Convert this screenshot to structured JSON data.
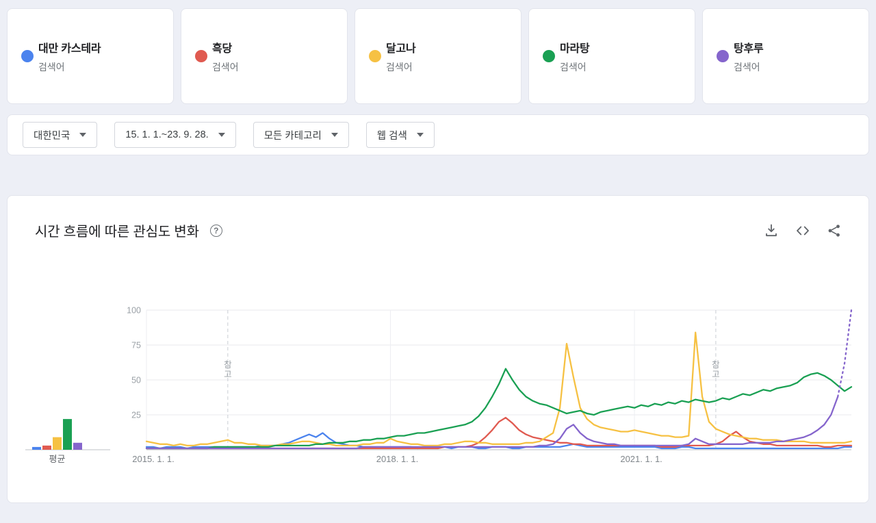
{
  "app": {
    "background": "#edeff6"
  },
  "terms": [
    {
      "label": "대만 카스테라",
      "kind": "검색어",
      "color": "#4b83ee"
    },
    {
      "label": "흑당",
      "kind": "검색어",
      "color": "#e05a50"
    },
    {
      "label": "달고나",
      "kind": "검색어",
      "color": "#f6c143"
    },
    {
      "label": "마라탕",
      "kind": "검색어",
      "color": "#1aa053"
    },
    {
      "label": "탕후루",
      "kind": "검색어",
      "color": "#8565cc"
    }
  ],
  "filters": [
    {
      "label": "대한민국"
    },
    {
      "label": "15. 1. 1.~23. 9. 28."
    },
    {
      "label": "모든 카테고리"
    },
    {
      "label": "웹 검색"
    }
  ],
  "chart_card": {
    "title": "시간 흐름에 따른 관심도 변화",
    "help_glyph": "?",
    "actions": [
      "download-icon",
      "embed-icon",
      "share-icon"
    ]
  },
  "chart_data": {
    "type": "line",
    "title": "시간 흐름에 따른 관심도 변화",
    "x_range": [
      "2015-01-01",
      "2023-09-28"
    ],
    "x_unit": "month",
    "x_ticks": [
      {
        "month_index": 0,
        "label": "2015. 1. 1."
      },
      {
        "month_index": 36,
        "label": "2018. 1. 1."
      },
      {
        "month_index": 72,
        "label": "2021. 1. 1."
      }
    ],
    "y_ticks": [
      25,
      50,
      75,
      100
    ],
    "ylim": [
      0,
      100
    ],
    "grid": true,
    "annotations": [
      {
        "month_index": 12,
        "label": "참고"
      },
      {
        "month_index": 84,
        "label": "참고"
      }
    ],
    "avg_label": "평균",
    "averages": [
      2,
      3,
      9,
      22,
      5
    ],
    "series": [
      {
        "name": "대만 카스테라",
        "color": "#4b83ee",
        "values": [
          2,
          2,
          1,
          2,
          2,
          2,
          1,
          2,
          2,
          2,
          2,
          2,
          2,
          2,
          2,
          2,
          2,
          3,
          3,
          3,
          4,
          5,
          7,
          9,
          11,
          9,
          12,
          8,
          5,
          4,
          3,
          3,
          2,
          2,
          2,
          2,
          2,
          2,
          2,
          2,
          1,
          2,
          2,
          2,
          2,
          1,
          2,
          2,
          2,
          1,
          1,
          2,
          2,
          2,
          1,
          1,
          2,
          2,
          2,
          2,
          2,
          2,
          3,
          4,
          3,
          2,
          2,
          2,
          2,
          2,
          2,
          2,
          2,
          2,
          2,
          2,
          1,
          1,
          1,
          2,
          2,
          1,
          1,
          1,
          1,
          1,
          1,
          1,
          1,
          1,
          1,
          1,
          1,
          1,
          1,
          1,
          1,
          1,
          1,
          1,
          1,
          1,
          1,
          2,
          2
        ]
      },
      {
        "name": "흑당",
        "color": "#e05a50",
        "values": [
          1,
          1,
          1,
          1,
          1,
          1,
          1,
          1,
          1,
          1,
          1,
          1,
          1,
          1,
          1,
          1,
          1,
          1,
          1,
          1,
          1,
          1,
          1,
          1,
          1,
          1,
          1,
          1,
          1,
          1,
          1,
          1,
          1,
          1,
          1,
          1,
          1,
          1,
          1,
          1,
          1,
          1,
          1,
          1,
          2,
          2,
          2,
          2,
          3,
          5,
          9,
          14,
          20,
          23,
          19,
          14,
          11,
          9,
          8,
          7,
          6,
          5,
          5,
          4,
          4,
          3,
          3,
          3,
          3,
          3,
          3,
          3,
          3,
          3,
          3,
          3,
          2,
          2,
          2,
          3,
          3,
          3,
          3,
          3,
          4,
          6,
          10,
          13,
          9,
          6,
          5,
          4,
          4,
          3,
          3,
          3,
          3,
          3,
          3,
          3,
          2,
          2,
          3,
          3,
          3
        ]
      },
      {
        "name": "달고나",
        "color": "#f6c143",
        "values": [
          6,
          5,
          4,
          4,
          3,
          4,
          3,
          3,
          4,
          4,
          5,
          6,
          7,
          5,
          5,
          4,
          4,
          3,
          3,
          3,
          4,
          4,
          5,
          6,
          6,
          5,
          4,
          4,
          3,
          3,
          3,
          3,
          4,
          4,
          5,
          5,
          8,
          6,
          5,
          4,
          4,
          3,
          3,
          3,
          4,
          4,
          5,
          6,
          6,
          5,
          5,
          4,
          4,
          4,
          4,
          4,
          5,
          5,
          6,
          9,
          12,
          30,
          76,
          52,
          30,
          22,
          18,
          16,
          15,
          14,
          13,
          13,
          14,
          13,
          12,
          11,
          10,
          10,
          9,
          9,
          10,
          84,
          38,
          20,
          15,
          13,
          11,
          10,
          9,
          8,
          8,
          7,
          7,
          7,
          6,
          6,
          6,
          6,
          5,
          5,
          5,
          5,
          5,
          5,
          6
        ]
      },
      {
        "name": "마라탕",
        "color": "#1aa053",
        "values": [
          1,
          1,
          1,
          1,
          1,
          1,
          1,
          1,
          1,
          1,
          2,
          2,
          2,
          2,
          2,
          2,
          2,
          2,
          2,
          3,
          3,
          3,
          3,
          3,
          3,
          4,
          4,
          5,
          5,
          5,
          6,
          6,
          7,
          7,
          8,
          8,
          9,
          10,
          10,
          11,
          12,
          12,
          13,
          14,
          15,
          16,
          17,
          18,
          20,
          24,
          30,
          38,
          47,
          58,
          50,
          43,
          38,
          35,
          33,
          32,
          30,
          28,
          26,
          27,
          28,
          26,
          25,
          27,
          28,
          29,
          30,
          31,
          30,
          32,
          31,
          33,
          32,
          34,
          33,
          35,
          34,
          36,
          35,
          34,
          35,
          37,
          36,
          38,
          40,
          39,
          41,
          43,
          42,
          44,
          45,
          46,
          48,
          52,
          54,
          55,
          53,
          50,
          46,
          42,
          45
        ]
      },
      {
        "name": "탕후루",
        "color": "#8565cc",
        "dashed_tail_points": 2,
        "values": [
          1,
          1,
          1,
          1,
          1,
          1,
          1,
          1,
          1,
          1,
          1,
          1,
          1,
          1,
          1,
          1,
          1,
          1,
          1,
          1,
          1,
          1,
          1,
          1,
          1,
          1,
          1,
          1,
          1,
          1,
          1,
          1,
          2,
          2,
          2,
          2,
          2,
          2,
          2,
          2,
          2,
          2,
          2,
          2,
          2,
          2,
          2,
          2,
          2,
          2,
          2,
          2,
          2,
          2,
          2,
          2,
          2,
          2,
          3,
          3,
          4,
          8,
          15,
          18,
          12,
          8,
          6,
          5,
          4,
          4,
          3,
          3,
          3,
          3,
          3,
          3,
          3,
          3,
          3,
          3,
          4,
          8,
          6,
          4,
          4,
          4,
          4,
          4,
          4,
          5,
          5,
          5,
          5,
          6,
          6,
          7,
          8,
          9,
          11,
          14,
          18,
          25,
          38,
          62,
          100
        ]
      }
    ]
  }
}
